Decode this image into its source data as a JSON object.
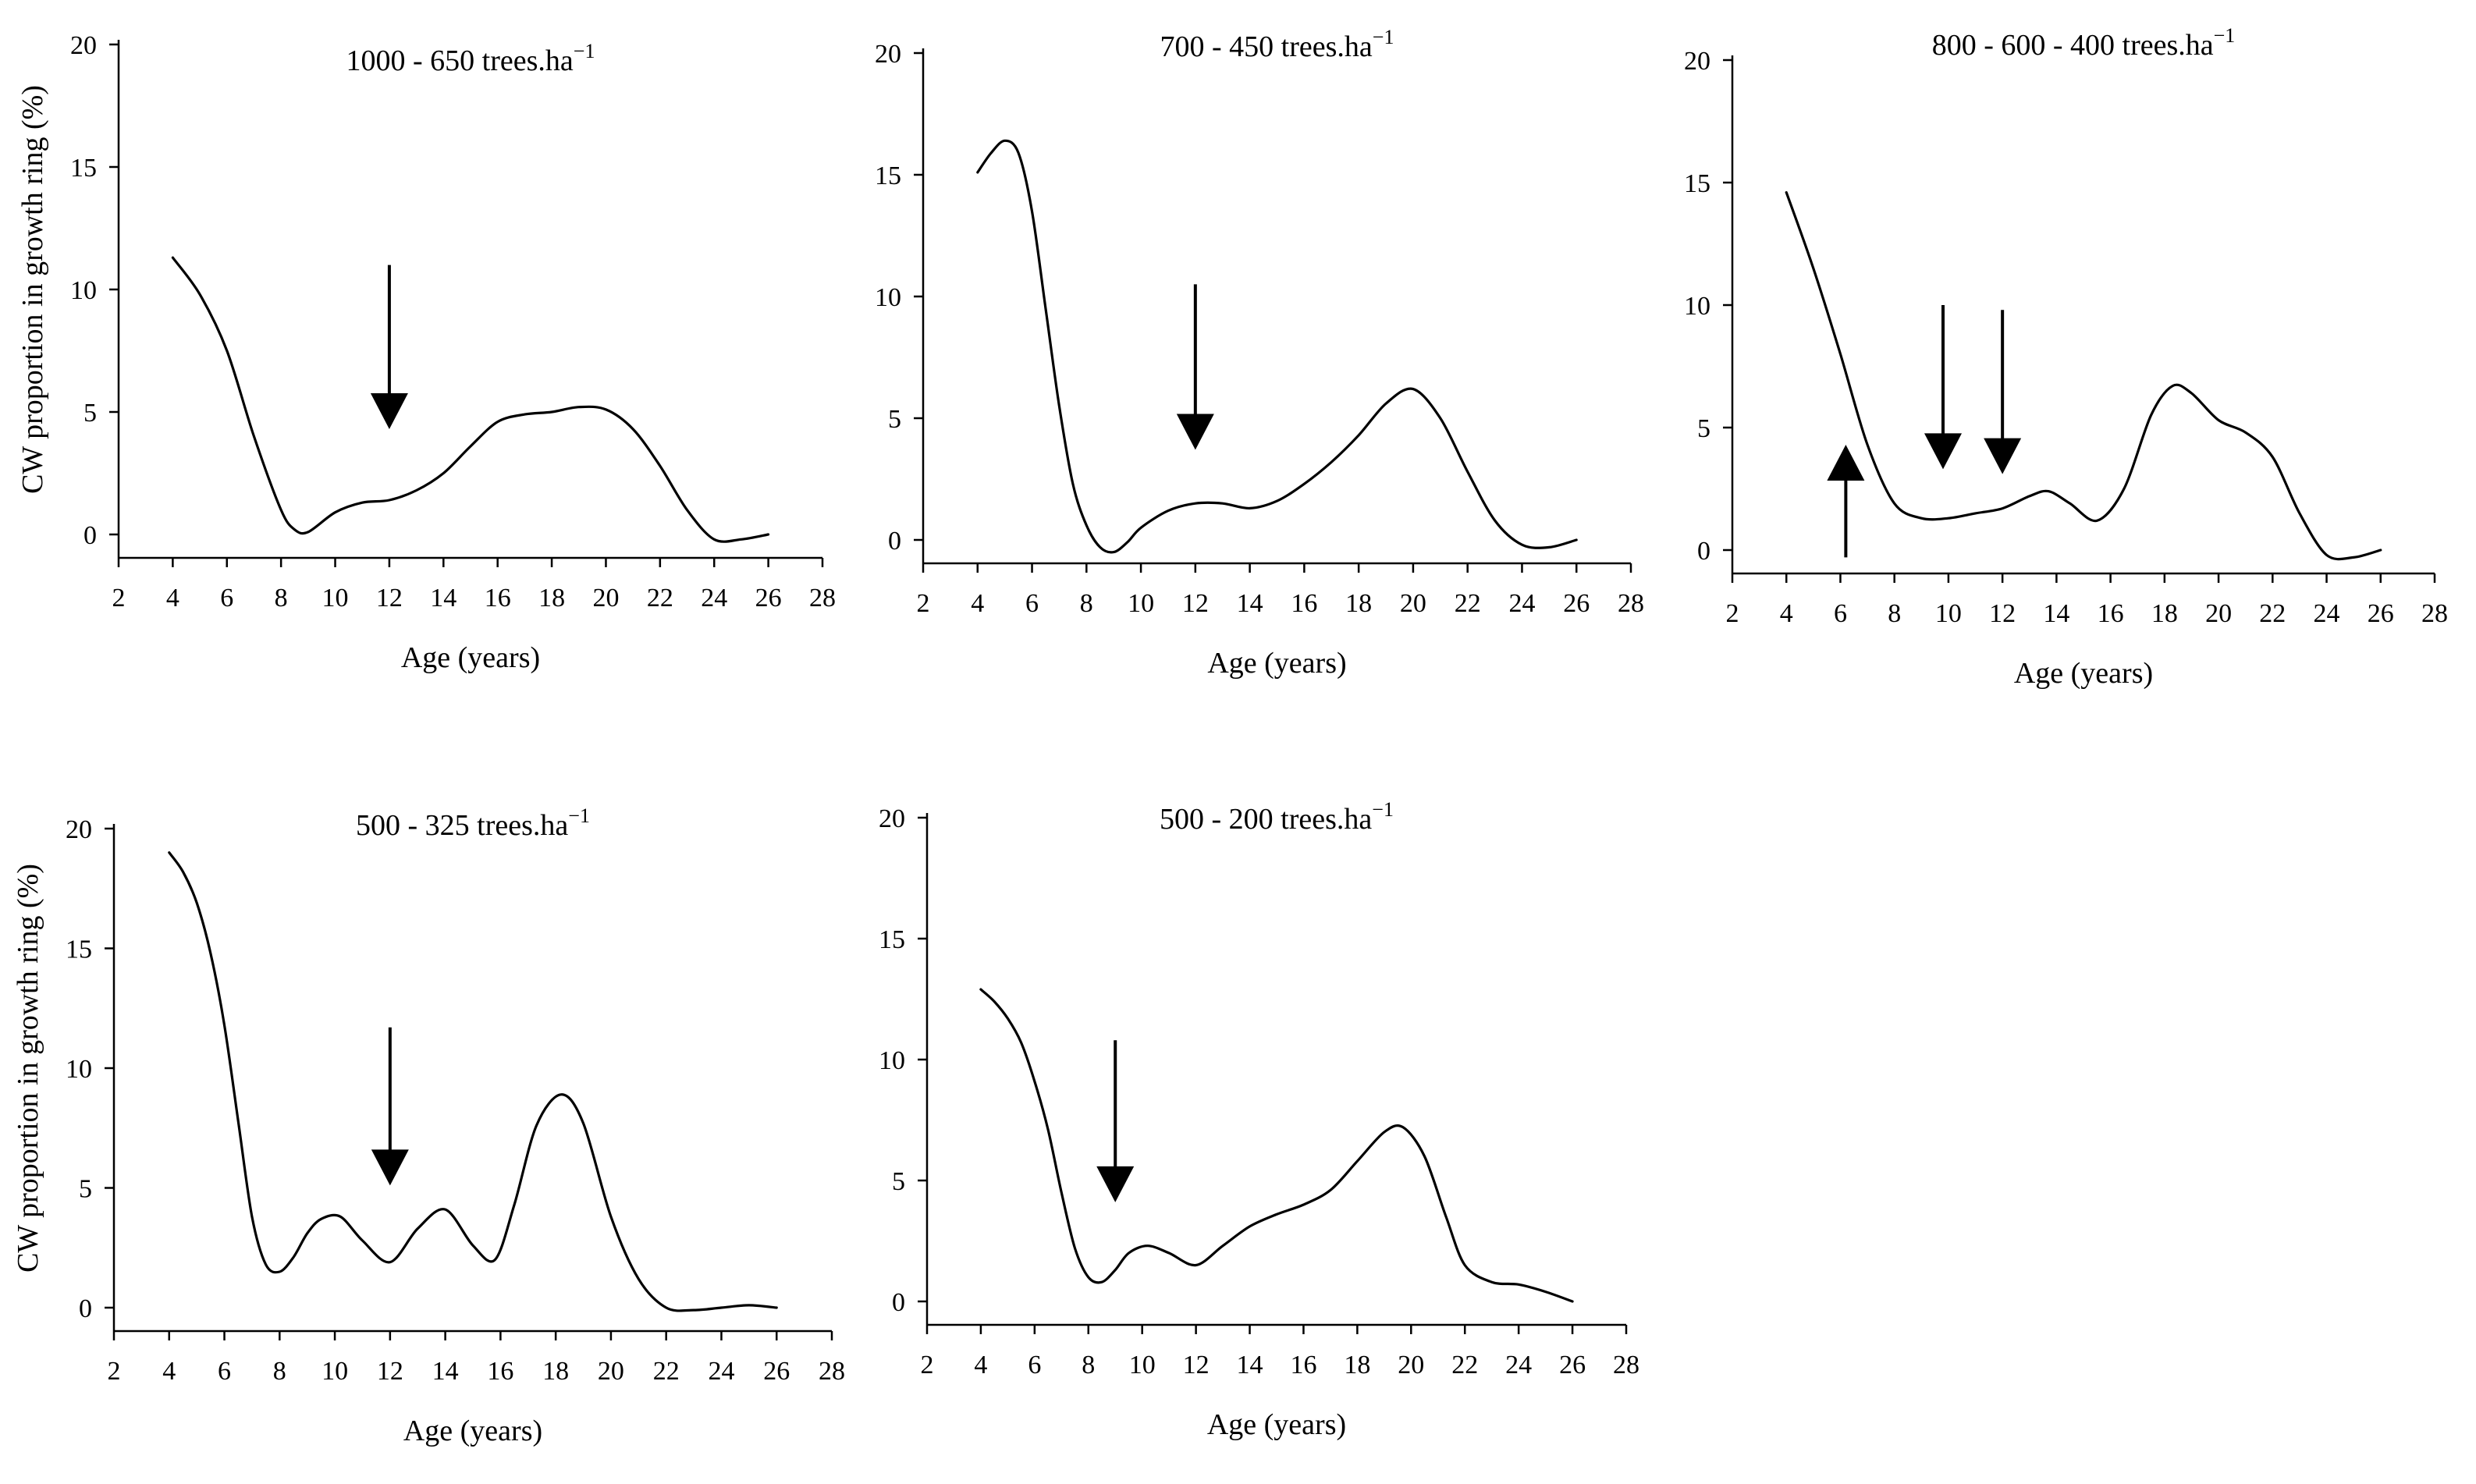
{
  "figure": {
    "background": "#ffffff",
    "line_color": "#000000"
  },
  "chart_data": [
    {
      "type": "line",
      "title": "1000 - 650 trees.ha",
      "title_sup": "−1",
      "xlabel": "Age (years)",
      "ylabel": "CW proportion in growth ring (%)",
      "xlim": [
        2,
        28
      ],
      "ylim": [
        0,
        20
      ],
      "xticks": [
        2,
        4,
        6,
        8,
        10,
        12,
        14,
        16,
        18,
        20,
        22,
        24,
        26,
        28
      ],
      "yticks": [
        0,
        5,
        10,
        15,
        20
      ],
      "series": [
        {
          "name": "CW proportion",
          "x": [
            4,
            5,
            6,
            7,
            8,
            8.5,
            9,
            10,
            11,
            12,
            13,
            14,
            15,
            16,
            17,
            18,
            19,
            20,
            21,
            22,
            23,
            24,
            25,
            26
          ],
          "y": [
            11.3,
            9.8,
            7.5,
            4.0,
            1.0,
            0.2,
            0.1,
            0.9,
            1.3,
            1.4,
            1.8,
            2.5,
            3.6,
            4.6,
            4.9,
            5.0,
            5.2,
            5.1,
            4.3,
            2.8,
            1.0,
            -0.2,
            -0.2,
            0.0
          ]
        }
      ],
      "annotations": [
        {
          "type": "arrow-down",
          "x": 12,
          "y_from": 11,
          "y_to": 4.3
        }
      ]
    },
    {
      "type": "line",
      "title": "700 - 450 trees.ha",
      "title_sup": "−1",
      "xlabel": "Age (years)",
      "ylabel": "",
      "xlim": [
        2,
        28
      ],
      "ylim": [
        0,
        20
      ],
      "xticks": [
        2,
        4,
        6,
        8,
        10,
        12,
        14,
        16,
        18,
        20,
        22,
        24,
        26,
        28
      ],
      "yticks": [
        0,
        5,
        10,
        15,
        20
      ],
      "series": [
        {
          "name": "CW proportion",
          "x": [
            4,
            4.5,
            5,
            5.5,
            6,
            6.5,
            7,
            7.5,
            8,
            8.5,
            9,
            9.5,
            10,
            11,
            12,
            13,
            14,
            15,
            16,
            17,
            18,
            19,
            20,
            21,
            22,
            23,
            24,
            25,
            26
          ],
          "y": [
            15.1,
            15.9,
            16.4,
            15.9,
            13.5,
            9.5,
            5.5,
            2.3,
            0.6,
            -0.3,
            -0.5,
            -0.1,
            0.5,
            1.2,
            1.5,
            1.5,
            1.3,
            1.6,
            2.3,
            3.2,
            4.3,
            5.6,
            6.2,
            5.0,
            2.8,
            0.8,
            -0.2,
            -0.3,
            0.0
          ]
        }
      ],
      "annotations": [
        {
          "type": "arrow-down",
          "x": 12,
          "y_from": 10.5,
          "y_to": 3.7
        }
      ]
    },
    {
      "type": "line",
      "title": "800 - 600 - 400 trees.ha",
      "title_sup": "−1",
      "xlabel": "Age (years)",
      "ylabel": "",
      "xlim": [
        2,
        28
      ],
      "ylim": [
        0,
        20
      ],
      "xticks": [
        2,
        4,
        6,
        8,
        10,
        12,
        14,
        16,
        18,
        20,
        22,
        24,
        26,
        28
      ],
      "yticks": [
        0,
        5,
        10,
        15,
        20
      ],
      "series": [
        {
          "name": "CW proportion",
          "x": [
            4,
            5,
            6,
            7,
            8,
            9,
            10,
            11,
            12,
            13,
            13.7,
            14.5,
            15.5,
            16.5,
            17.5,
            18.3,
            19,
            20,
            21,
            22,
            23,
            24,
            25,
            26
          ],
          "y": [
            14.6,
            11.5,
            8.0,
            4.3,
            1.9,
            1.3,
            1.3,
            1.5,
            1.7,
            2.2,
            2.4,
            1.9,
            1.2,
            2.5,
            5.5,
            6.7,
            6.4,
            5.3,
            4.8,
            3.8,
            1.5,
            -0.2,
            -0.3,
            0.0
          ]
        }
      ],
      "annotations": [
        {
          "type": "arrow-up",
          "x": 6.2,
          "y_from": -0.3,
          "y_to": 4.3
        },
        {
          "type": "arrow-down",
          "x": 9.8,
          "y_from": 10,
          "y_to": 3.3
        },
        {
          "type": "arrow-down",
          "x": 12,
          "y_from": 9.8,
          "y_to": 3.1
        }
      ]
    },
    {
      "type": "line",
      "title": "500 - 325 trees.ha",
      "title_sup": "−1",
      "xlabel": "Age (years)",
      "ylabel": "CW proportion in growth ring (%)",
      "xlim": [
        2,
        28
      ],
      "ylim": [
        0,
        20
      ],
      "xticks": [
        2,
        4,
        6,
        8,
        10,
        12,
        14,
        16,
        18,
        20,
        22,
        24,
        26,
        28
      ],
      "yticks": [
        0,
        5,
        10,
        15,
        20
      ],
      "series": [
        {
          "name": "CW proportion",
          "x": [
            4,
            4.5,
            5,
            5.5,
            6,
            6.5,
            7,
            7.5,
            8,
            8.5,
            9,
            9.5,
            10.2,
            11,
            12,
            13,
            14,
            15,
            15.8,
            16.5,
            17.3,
            18.2,
            19,
            20,
            21,
            22,
            23,
            24,
            25,
            26
          ],
          "y": [
            19.0,
            18.2,
            16.9,
            14.8,
            11.8,
            7.8,
            3.8,
            1.8,
            1.5,
            2.1,
            3.1,
            3.7,
            3.8,
            2.8,
            1.9,
            3.3,
            4.1,
            2.6,
            2.0,
            4.3,
            7.6,
            8.9,
            7.7,
            3.8,
            1.2,
            0.0,
            -0.1,
            0.0,
            0.1,
            0.0
          ]
        }
      ],
      "annotations": [
        {
          "type": "arrow-down",
          "x": 12,
          "y_from": 11.7,
          "y_to": 5.1
        }
      ]
    },
    {
      "type": "line",
      "title": "500 - 200 trees.ha",
      "title_sup": "−1",
      "xlabel": "Age (years)",
      "ylabel": "",
      "xlim": [
        2,
        28
      ],
      "ylim": [
        0,
        20
      ],
      "xticks": [
        2,
        4,
        6,
        8,
        10,
        12,
        14,
        16,
        18,
        20,
        22,
        24,
        26,
        28
      ],
      "yticks": [
        0,
        5,
        10,
        15,
        20
      ],
      "series": [
        {
          "name": "CW proportion",
          "x": [
            4,
            4.5,
            5,
            5.5,
            6,
            6.5,
            7,
            7.5,
            8,
            8.5,
            9,
            9.5,
            10.2,
            11,
            12,
            13,
            14,
            15,
            16,
            17,
            18,
            19,
            19.7,
            20.5,
            21.3,
            22,
            23,
            24,
            25,
            26
          ],
          "y": [
            12.9,
            12.4,
            11.7,
            10.7,
            9.1,
            7.1,
            4.5,
            2.2,
            1.0,
            0.8,
            1.3,
            2.0,
            2.3,
            2.0,
            1.5,
            2.3,
            3.1,
            3.6,
            4.0,
            4.6,
            5.8,
            7.0,
            7.2,
            6.0,
            3.5,
            1.5,
            0.8,
            0.7,
            0.4,
            0.0
          ]
        }
      ],
      "annotations": [
        {
          "type": "arrow-down",
          "x": 9,
          "y_from": 10.8,
          "y_to": 4.1
        }
      ]
    }
  ]
}
